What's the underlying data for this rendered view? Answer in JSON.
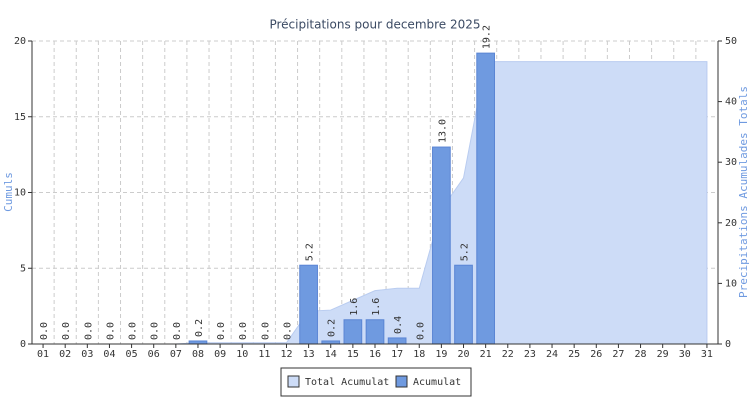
{
  "chart_data": {
    "type": "bar",
    "title": "Précipitations pour decembre 2025",
    "y_label": "Cumuls",
    "y2_label": "Precipitations Acumulades Totals",
    "categories": [
      "01",
      "02",
      "03",
      "04",
      "05",
      "06",
      "07",
      "08",
      "09",
      "10",
      "11",
      "12",
      "13",
      "14",
      "15",
      "16",
      "17",
      "18",
      "19",
      "20",
      "21",
      "22",
      "23",
      "24",
      "25",
      "26",
      "27",
      "28",
      "29",
      "30",
      "31"
    ],
    "series": [
      {
        "name": "Total Acumulat",
        "type": "area",
        "axis": "y2",
        "color": "#cddcf7",
        "values": [
          0,
          0,
          0,
          0,
          0,
          0,
          0,
          0.2,
          0.2,
          0.2,
          0.2,
          0.2,
          5.4,
          5.6,
          7.2,
          8.8,
          9.2,
          9.2,
          22.2,
          27.4,
          46.6,
          46.6,
          46.6,
          46.6,
          46.6,
          46.6,
          46.6,
          46.6,
          46.6,
          46.6,
          46.6
        ]
      },
      {
        "name": "Acumulat",
        "type": "bar",
        "color": "#6f9ae0",
        "values": [
          0,
          0,
          0,
          0,
          0,
          0,
          0,
          0.2,
          0,
          0,
          0,
          0,
          5.2,
          0.2,
          1.6,
          1.6,
          0.4,
          0,
          13,
          5.2,
          19.2,
          null,
          null,
          null,
          null,
          null,
          null,
          null,
          null,
          null,
          null
        ],
        "value_labels": [
          "0.0",
          "0.0",
          "0.0",
          "0.0",
          "0.0",
          "0.0",
          "0.0",
          "0.2",
          "0.0",
          "0.0",
          "0.0",
          "0.0",
          "5.2",
          "0.2",
          "1.6",
          "1.6",
          "0.4",
          "0.0",
          "13.0",
          "5.2",
          "19.2",
          null,
          null,
          null,
          null,
          null,
          null,
          null,
          null,
          null,
          null
        ]
      }
    ],
    "ylim": [
      0,
      20
    ],
    "yticks": [
      0,
      5,
      10,
      15,
      20
    ],
    "y2lim": [
      0,
      50
    ],
    "y2ticks": [
      0,
      10,
      20,
      30,
      40,
      50
    ],
    "grid": true,
    "legend": "bottom"
  }
}
